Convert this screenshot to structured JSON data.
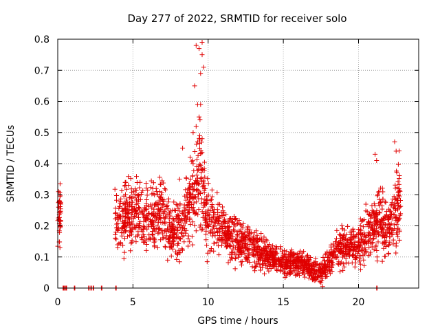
{
  "chart_data": {
    "type": "scatter",
    "title": "Day 277 of 2022, SRMTID for receiver solo",
    "xlabel": "GPS time / hours",
    "ylabel": "SRMTID / TECUs",
    "xlim": [
      0,
      24
    ],
    "ylim": [
      0,
      0.8
    ],
    "xticks": [
      0,
      5,
      10,
      15,
      20
    ],
    "yticks": [
      0,
      0.1,
      0.2,
      0.3,
      0.4,
      0.5,
      0.6,
      0.7,
      0.8
    ],
    "xtick_labels": [
      "0",
      "5",
      "10",
      "15",
      "20"
    ],
    "ytick_labels": [
      "0",
      "0.1",
      "0.2",
      "0.3",
      "0.4",
      "0.5",
      "0.6",
      "0.7",
      "0.8"
    ],
    "grid": true,
    "marker": "+",
    "colors": {
      "series": "#e00000",
      "grid": "#a0a0a0",
      "axis": "#000000"
    },
    "trend": [
      [
        0.0,
        0.22
      ],
      [
        0.2,
        0.25
      ],
      [
        3.8,
        0.22
      ],
      [
        4.5,
        0.24
      ],
      [
        5.0,
        0.24
      ],
      [
        5.5,
        0.25
      ],
      [
        6.0,
        0.22
      ],
      [
        6.5,
        0.24
      ],
      [
        7.0,
        0.25
      ],
      [
        7.5,
        0.17
      ],
      [
        8.0,
        0.2
      ],
      [
        8.5,
        0.22
      ],
      [
        9.0,
        0.32
      ],
      [
        9.5,
        0.38
      ],
      [
        10.0,
        0.22
      ],
      [
        11.0,
        0.18
      ],
      [
        12.0,
        0.15
      ],
      [
        13.0,
        0.13
      ],
      [
        14.0,
        0.1
      ],
      [
        15.0,
        0.08
      ],
      [
        16.0,
        0.08
      ],
      [
        17.0,
        0.06
      ],
      [
        17.5,
        0.05
      ],
      [
        18.0,
        0.08
      ],
      [
        18.5,
        0.12
      ],
      [
        19.0,
        0.13
      ],
      [
        20.0,
        0.14
      ],
      [
        21.0,
        0.2
      ],
      [
        21.5,
        0.22
      ],
      [
        22.0,
        0.18
      ],
      [
        22.5,
        0.28
      ],
      [
        22.8,
        0.3
      ]
    ],
    "peaks": [
      [
        9.2,
        0.78
      ],
      [
        9.4,
        0.77
      ],
      [
        9.6,
        0.79
      ],
      [
        9.6,
        0.75
      ],
      [
        9.7,
        0.71
      ],
      [
        9.5,
        0.69
      ],
      [
        9.1,
        0.65
      ],
      [
        9.3,
        0.59
      ],
      [
        9.5,
        0.59
      ],
      [
        9.4,
        0.55
      ],
      [
        9.2,
        0.52
      ],
      [
        9.0,
        0.5
      ],
      [
        9.6,
        0.48
      ],
      [
        9.3,
        0.47
      ],
      [
        8.3,
        0.45
      ],
      [
        21.1,
        0.43
      ],
      [
        22.4,
        0.47
      ],
      [
        22.5,
        0.44
      ],
      [
        21.2,
        0.41
      ],
      [
        9.0,
        0.4
      ],
      [
        8.1,
        0.35
      ]
    ],
    "zero_markers": [
      0.35,
      0.45,
      0.55,
      1.1,
      2.05,
      2.2,
      2.35,
      2.9,
      3.85,
      21.2
    ]
  }
}
